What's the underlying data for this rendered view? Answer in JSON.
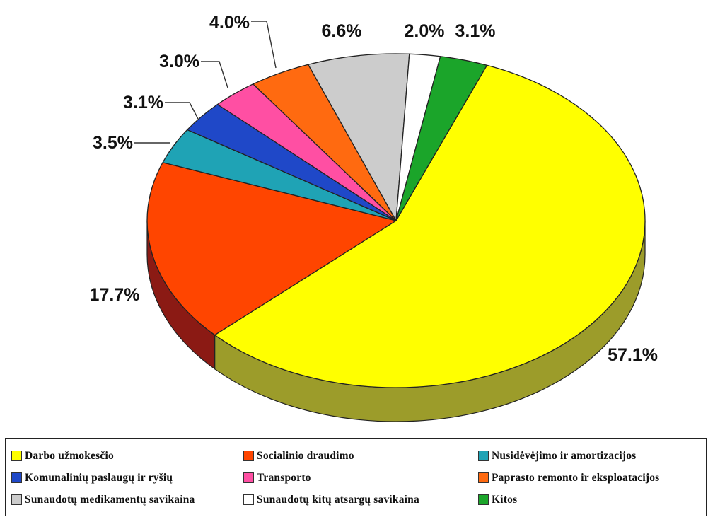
{
  "chart_data": {
    "type": "pie",
    "title": "",
    "slices": [
      {
        "label": "Darbo užmokesčio",
        "value": 57.1,
        "value_label": "57.1%",
        "color": "#FFFF00",
        "side_color": "#9C9C2A"
      },
      {
        "label": "Socialinio draudimo",
        "value": 17.7,
        "value_label": "17.7%",
        "color": "#FF4500",
        "side_color": "#8B1A14"
      },
      {
        "label": "Nusidėvėjimo ir amortizacijos",
        "value": 3.5,
        "value_label": "3.5%",
        "color": "#1FA3B5",
        "side_color": "#0F5F6A"
      },
      {
        "label": "Komunalinių paslaugų ir ryšių",
        "value": 3.1,
        "value_label": "3.1%",
        "color": "#1F48C8",
        "side_color": "#12286E"
      },
      {
        "label": "Transporto",
        "value": 3.0,
        "value_label": "3.0%",
        "color": "#FF4FA3",
        "side_color": "#8F2B5A"
      },
      {
        "label": "Paprasto remonto ir eksploatacijos",
        "value": 4.0,
        "value_label": "4.0%",
        "color": "#FF6A10",
        "side_color": "#8E3A08"
      },
      {
        "label": "Sunaudotų medikamentų savikaina",
        "value": 6.6,
        "value_label": "6.6%",
        "color": "#CCCCCC",
        "side_color": "#777777"
      },
      {
        "label": "Sunaudotų kitų atsargų savikaina",
        "value": 2.0,
        "value_label": "2.0%",
        "color": "#FFFFFF",
        "side_color": "#999999"
      },
      {
        "label": "Kitos",
        "value": 3.1,
        "value_label": "3.1%",
        "color": "#1BA52A",
        "side_color": "#0F5C18"
      }
    ],
    "legend_position": "bottom"
  },
  "legend": {
    "items": [
      {
        "label": "Darbo užmokesčio",
        "color": "#FFFF00"
      },
      {
        "label": "Socialinio draudimo",
        "color": "#FF4500"
      },
      {
        "label": "Nusidėvėjimo ir amortizacijos",
        "color": "#1FA3B5"
      },
      {
        "label": "Komunalinių paslaugų ir ryšių",
        "color": "#1F48C8"
      },
      {
        "label": "Transporto",
        "color": "#FF4FA3"
      },
      {
        "label": "Paprasto remonto ir eksploatacijos",
        "color": "#FF6A10"
      },
      {
        "label": "Sunaudotų medikamentų savikaina",
        "color": "#CCCCCC"
      },
      {
        "label": "Sunaudotų kitų atsargų savikaina",
        "color": "#FFFFFF"
      },
      {
        "label": "Kitos",
        "color": "#1BA52A"
      }
    ]
  }
}
